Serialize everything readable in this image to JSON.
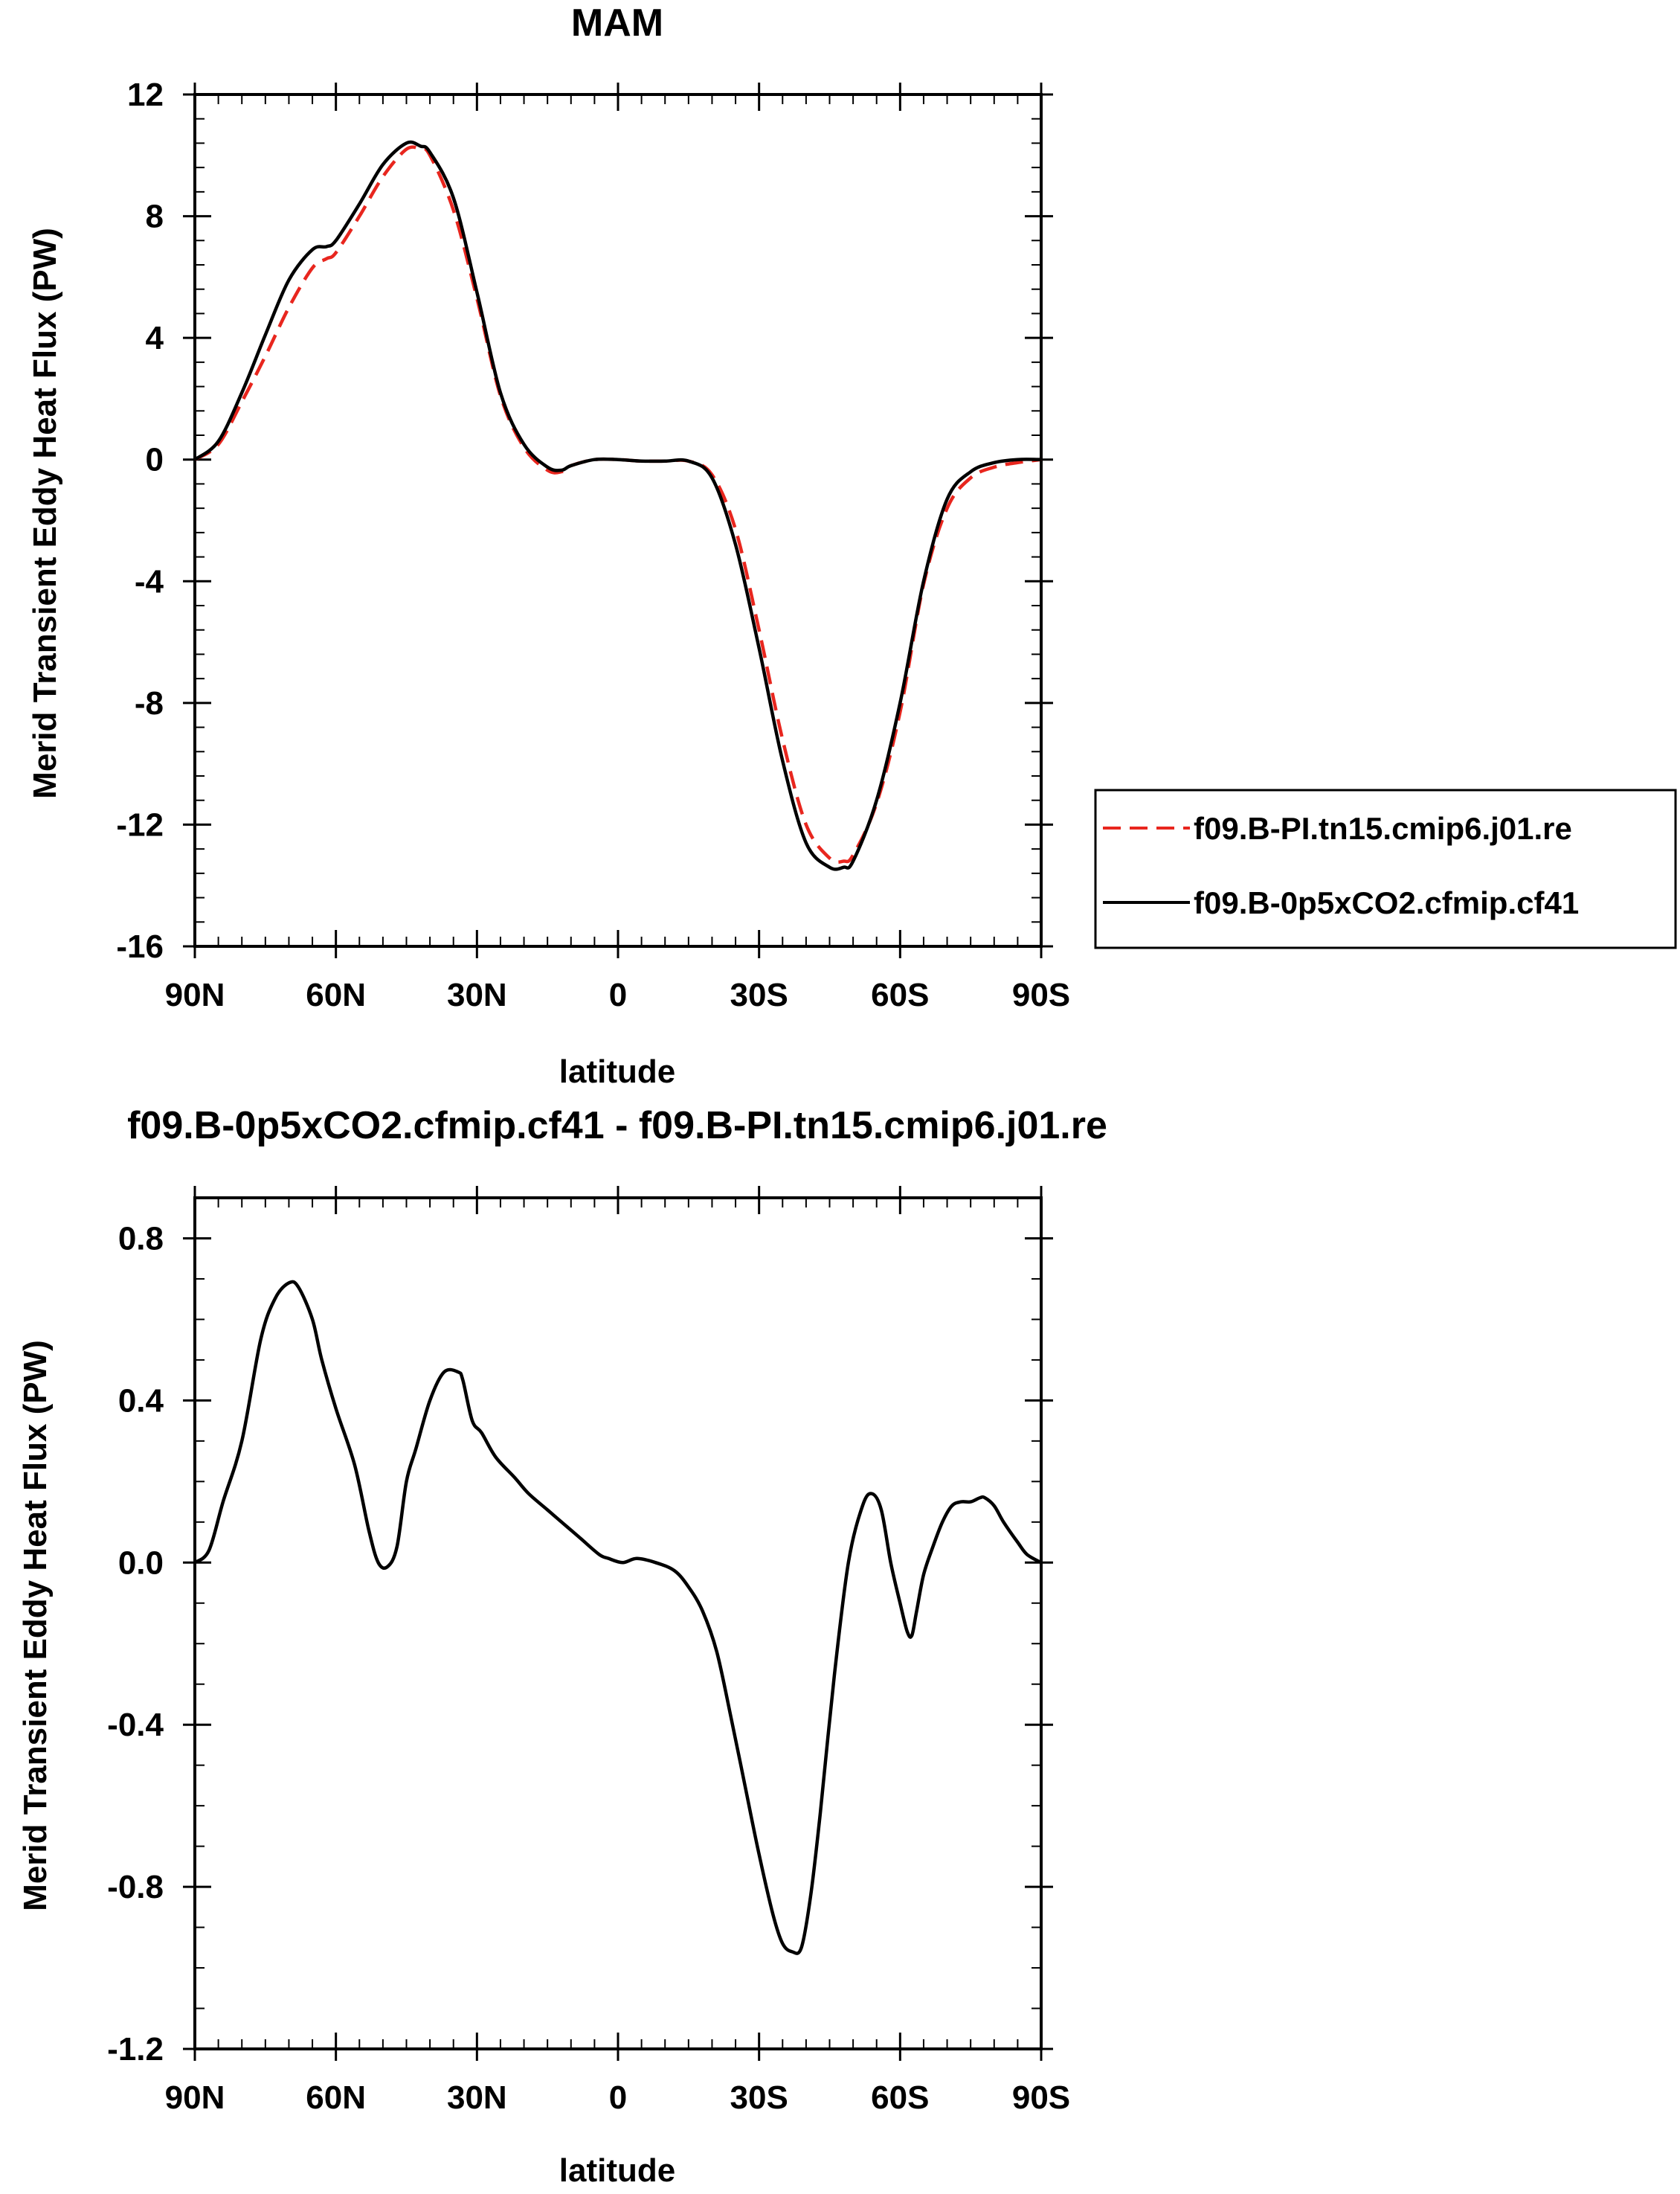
{
  "chart_data": [
    {
      "type": "line",
      "title": "MAM",
      "xlabel": "latitude",
      "ylabel": "Merid Transient Eddy Heat Flux (PW)",
      "xlim": [
        90,
        -90
      ],
      "ylim": [
        -16,
        12
      ],
      "x_ticks": [
        {
          "value": 90,
          "label": "90N"
        },
        {
          "value": 60,
          "label": "60N"
        },
        {
          "value": 30,
          "label": "30N"
        },
        {
          "value": 0,
          "label": "0"
        },
        {
          "value": -30,
          "label": "30S"
        },
        {
          "value": -60,
          "label": "60S"
        },
        {
          "value": -90,
          "label": "90S"
        }
      ],
      "y_ticks": [
        {
          "value": 12,
          "label": "12"
        },
        {
          "value": 8,
          "label": "8"
        },
        {
          "value": 4,
          "label": "4"
        },
        {
          "value": 0,
          "label": "0"
        },
        {
          "value": -4,
          "label": "-4"
        },
        {
          "value": -8,
          "label": "-8"
        },
        {
          "value": -12,
          "label": "-12"
        },
        {
          "value": -16,
          "label": "-16"
        }
      ],
      "legend_position": "right",
      "series": [
        {
          "name": "f09.B-PI.tn15.cmip6.j01.re",
          "color": "#e8261e",
          "dash": "dashed",
          "x": [
            90,
            85,
            80,
            75,
            70,
            65,
            62,
            60,
            55,
            50,
            45,
            42,
            40,
            35,
            30,
            25,
            20,
            15,
            12,
            10,
            5,
            0,
            -5,
            -10,
            -15,
            -20,
            -25,
            -30,
            -35,
            -40,
            -45,
            -48,
            -50,
            -55,
            -60,
            -65,
            -70,
            -75,
            -80,
            -85,
            -90
          ],
          "y": [
            0.0,
            0.5,
            1.9,
            3.4,
            5.0,
            6.3,
            6.6,
            6.8,
            8.0,
            9.3,
            10.2,
            10.2,
            10.0,
            8.2,
            5.3,
            2.1,
            0.4,
            -0.35,
            -0.4,
            -0.2,
            0.0,
            0.0,
            -0.05,
            -0.05,
            -0.05,
            -0.5,
            -2.3,
            -5.6,
            -9.2,
            -12.0,
            -13.1,
            -13.2,
            -13.0,
            -11.3,
            -8.3,
            -4.1,
            -1.6,
            -0.6,
            -0.25,
            -0.1,
            0.0
          ]
        },
        {
          "name": "f09.B-0p5xCO2.cfmip.cf41",
          "color": "#000000",
          "dash": "solid",
          "x": [
            90,
            85,
            80,
            75,
            70,
            65,
            62,
            60,
            55,
            50,
            45,
            42,
            40,
            35,
            30,
            25,
            20,
            15,
            12,
            10,
            5,
            0,
            -5,
            -10,
            -15,
            -20,
            -25,
            -30,
            -35,
            -40,
            -45,
            -48,
            -50,
            -55,
            -60,
            -65,
            -70,
            -75,
            -80,
            -85,
            -90
          ],
          "y": [
            0.0,
            0.6,
            2.2,
            4.1,
            5.9,
            6.9,
            7.0,
            7.2,
            8.4,
            9.7,
            10.4,
            10.3,
            10.1,
            8.6,
            5.5,
            2.2,
            0.5,
            -0.25,
            -0.35,
            -0.2,
            0.0,
            0.0,
            -0.05,
            -0.05,
            -0.05,
            -0.6,
            -2.8,
            -6.2,
            -9.9,
            -12.6,
            -13.4,
            -13.4,
            -13.2,
            -11.2,
            -8.0,
            -4.0,
            -1.3,
            -0.4,
            -0.1,
            0.0,
            0.0
          ]
        }
      ]
    },
    {
      "type": "line",
      "title": "f09.B-0p5xCO2.cfmip.cf41 - f09.B-PI.tn15.cmip6.j01.re",
      "xlabel": "latitude",
      "ylabel": "Merid Transient Eddy Heat Flux (PW)",
      "xlim": [
        90,
        -90
      ],
      "ylim": [
        -1.2,
        0.9
      ],
      "x_ticks": [
        {
          "value": 90,
          "label": "90N"
        },
        {
          "value": 60,
          "label": "60N"
        },
        {
          "value": 30,
          "label": "30N"
        },
        {
          "value": 0,
          "label": "0"
        },
        {
          "value": -30,
          "label": "30S"
        },
        {
          "value": -60,
          "label": "60S"
        },
        {
          "value": -90,
          "label": "90S"
        }
      ],
      "y_ticks": [
        {
          "value": 0.8,
          "label": "0.8"
        },
        {
          "value": 0.4,
          "label": "0.4"
        },
        {
          "value": 0.0,
          "label": "0.0"
        },
        {
          "value": -0.4,
          "label": "-0.4"
        },
        {
          "value": -0.8,
          "label": "-0.8"
        },
        {
          "value": -1.2,
          "label": "-1.2"
        }
      ],
      "series": [
        {
          "color": "#000000",
          "dash": "solid",
          "x": [
            90,
            87,
            84,
            80,
            76,
            73,
            70,
            68,
            65,
            63,
            60,
            56,
            53,
            51,
            49,
            47,
            45,
            43,
            40,
            37,
            34,
            33,
            31,
            29,
            26,
            22,
            19,
            15,
            12,
            8,
            4,
            2,
            -1,
            -4,
            -8,
            -12,
            -15,
            -18,
            -21,
            -24,
            -27,
            -30,
            -33,
            -35,
            -37,
            -39,
            -41,
            -43,
            -46,
            -49,
            -52,
            -54,
            -56,
            -58,
            -60,
            -61.5,
            -62.5,
            -63.5,
            -65,
            -67,
            -69,
            -71,
            -73,
            -75,
            -77,
            -78,
            -80,
            -82,
            -85,
            -87,
            -90
          ],
          "y": [
            0.0,
            0.03,
            0.15,
            0.3,
            0.55,
            0.65,
            0.69,
            0.68,
            0.6,
            0.5,
            0.38,
            0.24,
            0.08,
            0.0,
            -0.01,
            0.04,
            0.2,
            0.28,
            0.4,
            0.47,
            0.47,
            0.45,
            0.35,
            0.32,
            0.26,
            0.21,
            0.17,
            0.13,
            0.1,
            0.06,
            0.02,
            0.01,
            0.0,
            0.01,
            0.0,
            -0.02,
            -0.06,
            -0.12,
            -0.22,
            -0.38,
            -0.55,
            -0.72,
            -0.87,
            -0.94,
            -0.96,
            -0.95,
            -0.82,
            -0.62,
            -0.28,
            0.0,
            0.14,
            0.17,
            0.13,
            0.0,
            -0.1,
            -0.17,
            -0.18,
            -0.12,
            -0.03,
            0.04,
            0.1,
            0.14,
            0.15,
            0.15,
            0.16,
            0.16,
            0.14,
            0.1,
            0.05,
            0.02,
            0.0
          ]
        }
      ]
    }
  ]
}
